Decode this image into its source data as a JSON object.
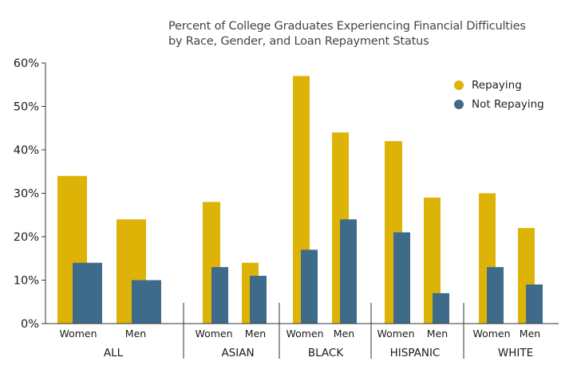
{
  "chart_data": {
    "type": "bar",
    "title_lines": [
      "Percent of College Graduates Experiencing Financial Difficulties",
      "by Race, Gender, and Loan Repayment Status"
    ],
    "ylim": [
      0,
      60
    ],
    "yticks": [
      "0%",
      "10%",
      "20%",
      "30%",
      "40%",
      "50%",
      "60%"
    ],
    "groups": [
      {
        "name": "ALL",
        "subgroups": [
          "Women",
          "Men"
        ]
      },
      {
        "name": "ASIAN",
        "subgroups": [
          "Women",
          "Men"
        ]
      },
      {
        "name": "BLACK",
        "subgroups": [
          "Women",
          "Men"
        ]
      },
      {
        "name": "HISPANIC",
        "subgroups": [
          "Women",
          "Men"
        ]
      },
      {
        "name": "WHITE",
        "subgroups": [
          "Women",
          "Men"
        ]
      }
    ],
    "series": [
      {
        "name": "Repaying",
        "color": "#DDB308",
        "values": [
          34,
          24,
          28,
          14,
          57,
          44,
          42,
          29,
          30,
          22
        ]
      },
      {
        "name": "Not Repaying",
        "color": "#3F6B8A",
        "values": [
          14,
          10,
          13,
          11,
          17,
          24,
          21,
          7,
          13,
          9
        ]
      }
    ],
    "legend_position": "top-right",
    "grid": false
  }
}
